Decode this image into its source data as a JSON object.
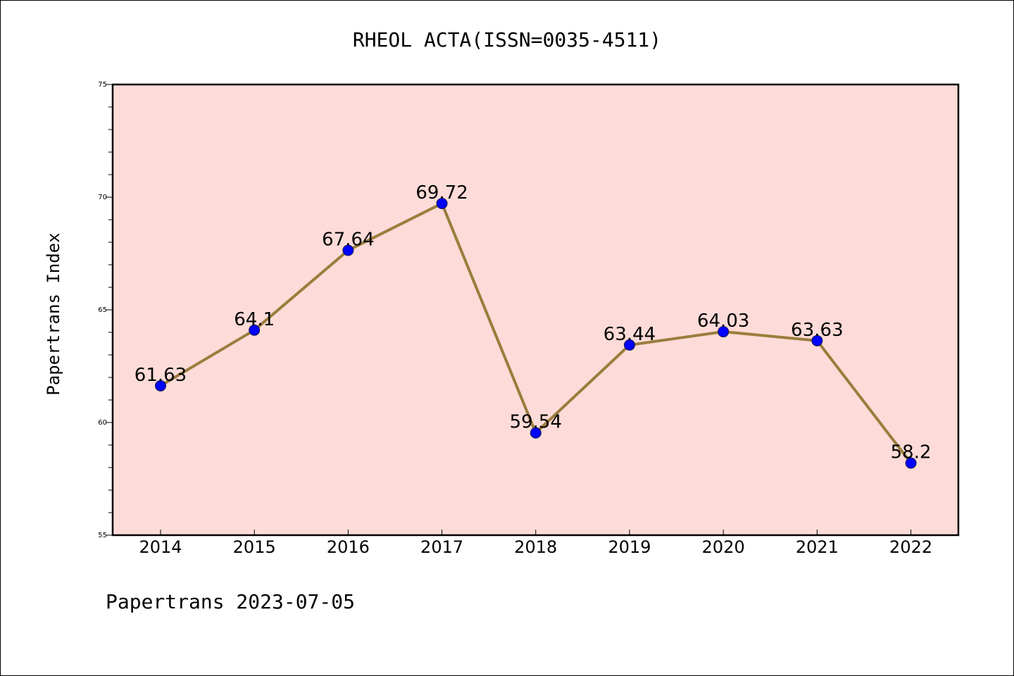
{
  "chart_data": {
    "type": "line",
    "title": "RHEOL ACTA(ISSN=0035-4511)",
    "ylabel": "Papertrans Index",
    "xlabel": "",
    "categories": [
      "2014",
      "2015",
      "2016",
      "2017",
      "2018",
      "2019",
      "2020",
      "2021",
      "2022"
    ],
    "series": [
      {
        "values": [
          61.63,
          64.1,
          67.64,
          69.72,
          59.54,
          63.44,
          64.03,
          63.63,
          58.2
        ],
        "data_labels": [
          "61.63",
          "64.1",
          "67.64",
          "69.72",
          "59.54",
          "63.44",
          "64.03",
          "63.63",
          "58.2"
        ],
        "line_color": "#9a7d3c",
        "marker_color": "#0000ff"
      }
    ],
    "ylim": [
      55,
      75
    ],
    "yticks": [
      "55",
      "60",
      "65",
      "70",
      "75"
    ],
    "grid": false,
    "plot_background": "#fddbd8",
    "footer": "Papertrans 2023-07-05"
  }
}
